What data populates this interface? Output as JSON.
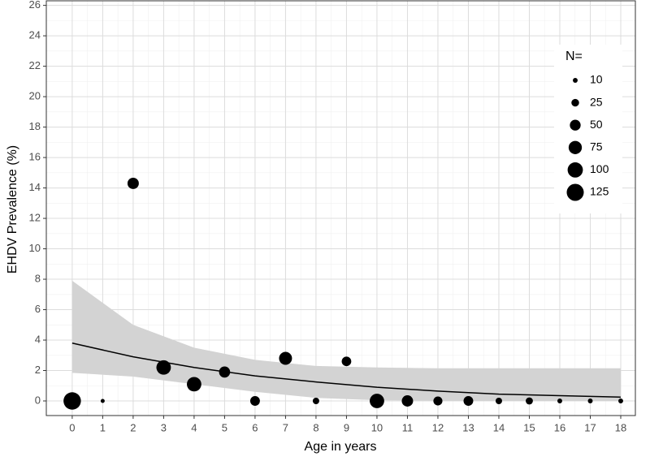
{
  "chart_data": {
    "type": "scatter",
    "x_label": "Age in years",
    "y_label": "EHDV Prevalence (%)",
    "x": [
      0,
      1,
      2,
      3,
      4,
      5,
      6,
      7,
      8,
      9,
      10,
      11,
      12,
      13,
      14,
      15,
      16,
      17,
      18
    ],
    "values": [
      0,
      0,
      14.3,
      2.2,
      1.1,
      1.9,
      0,
      2.8,
      0,
      2.6,
      0,
      0,
      0,
      0,
      0,
      0,
      0,
      0,
      0
    ],
    "sizes": [
      130,
      7,
      55,
      90,
      90,
      53,
      40,
      72,
      18,
      39,
      90,
      55,
      35,
      40,
      18,
      22,
      10,
      10,
      10
    ],
    "color": "#000000",
    "fit": {
      "x": [
        0,
        2,
        4,
        6,
        8,
        10,
        12,
        14,
        16,
        18
      ],
      "values": [
        3.8,
        2.9,
        2.2,
        1.65,
        1.25,
        0.9,
        0.65,
        0.45,
        0.35,
        0.25
      ],
      "lower": [
        1.85,
        1.6,
        1.1,
        0.6,
        0.2,
        0.05,
        0.01,
        0,
        0,
        0
      ],
      "upper": [
        7.9,
        5.0,
        3.5,
        2.7,
        2.3,
        2.2,
        2.15,
        2.15,
        2.15,
        2.15
      ],
      "color": "#000000",
      "band_color": "#d3d3d3"
    },
    "legend": {
      "title": "N=",
      "sizes": [
        10,
        25,
        50,
        75,
        100,
        125
      ],
      "position": "upper right"
    },
    "xlim": [
      -0.85,
      18.48
    ],
    "ylim": [
      -0.96,
      26.3
    ],
    "xticks": [
      0,
      1,
      2,
      3,
      4,
      5,
      6,
      7,
      8,
      9,
      10,
      11,
      12,
      13,
      14,
      15,
      16,
      17,
      18
    ],
    "yticks": [
      0,
      2,
      4,
      6,
      8,
      10,
      12,
      14,
      16,
      18,
      20,
      22,
      24,
      26
    ],
    "grid": true
  }
}
